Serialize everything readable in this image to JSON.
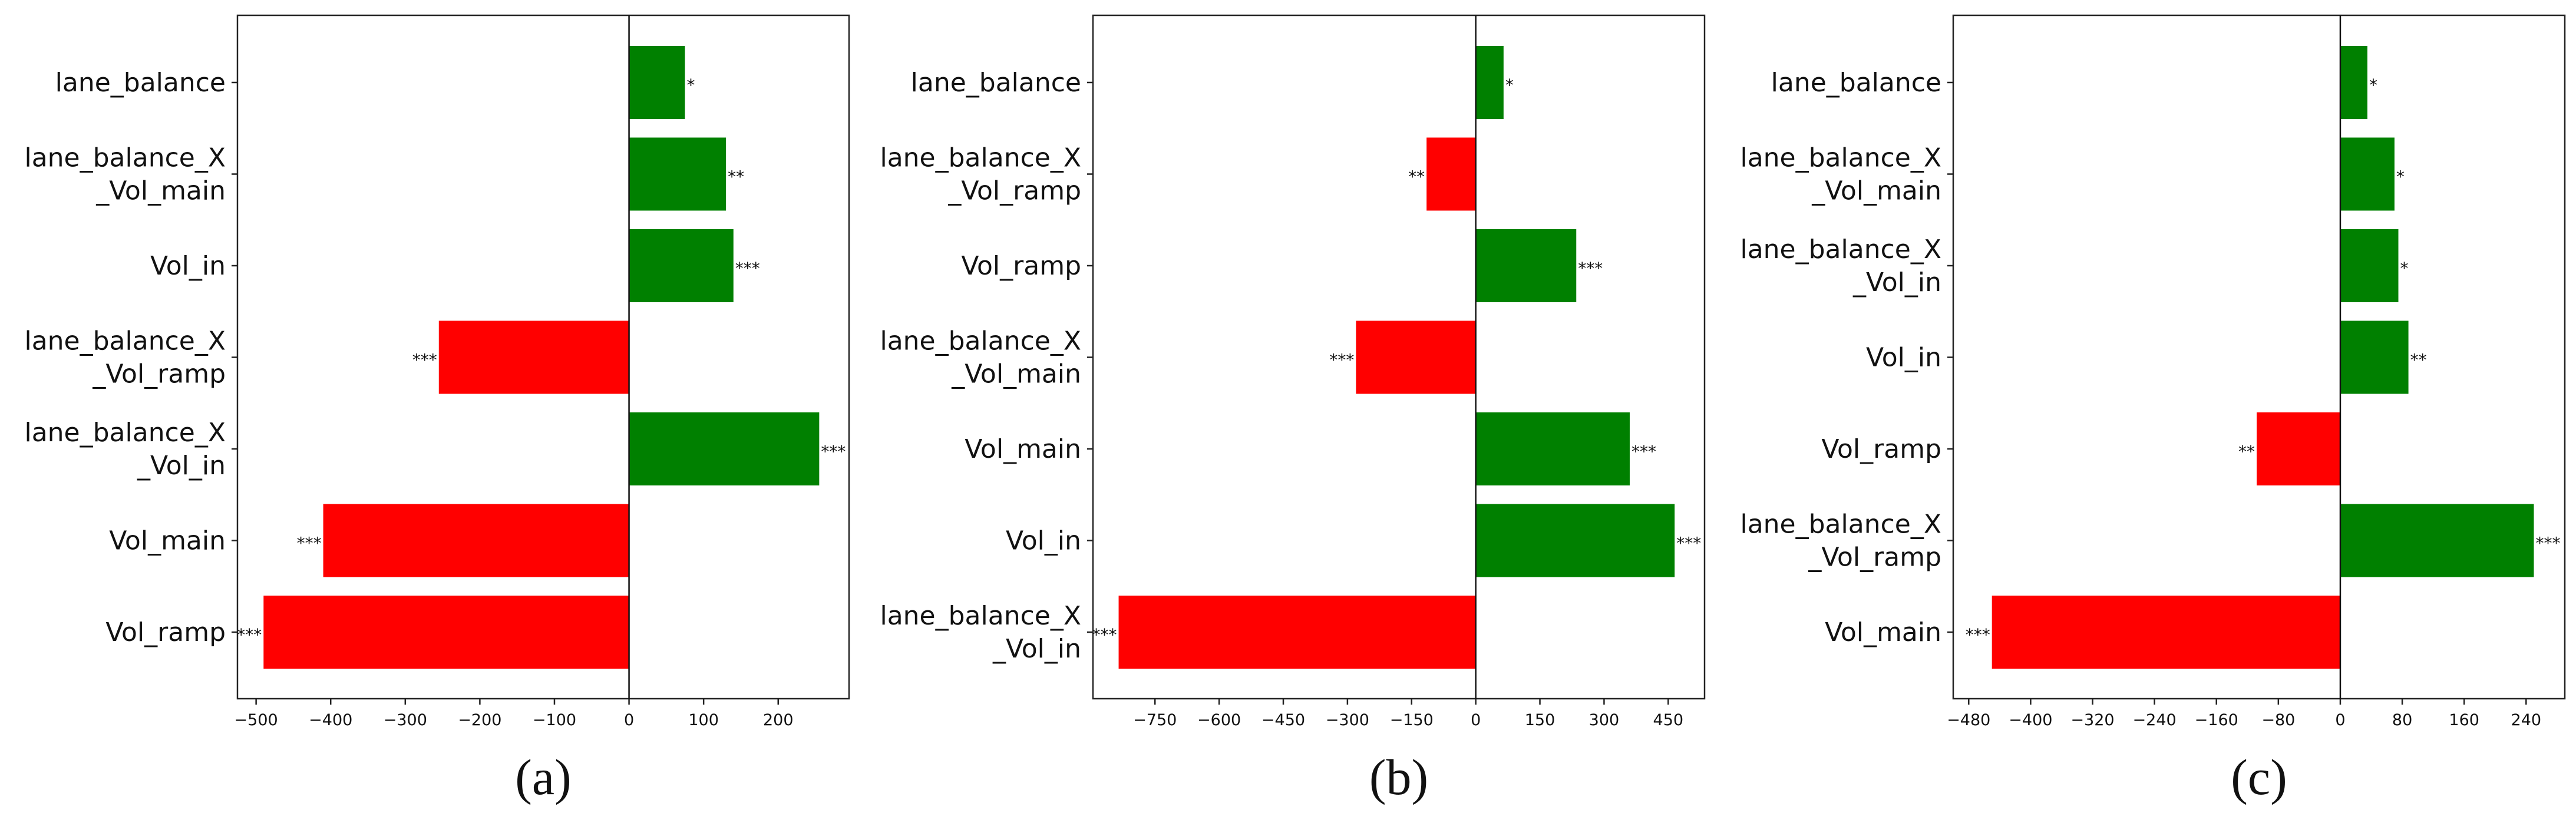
{
  "colors": {
    "positive": "#008000",
    "negative": "#ff0000"
  },
  "chart_data": [
    {
      "type": "bar",
      "orientation": "horizontal",
      "panel_label": "(a)",
      "categories": [
        [
          "lane_balance"
        ],
        [
          "lane_balance_X",
          "_Vol_main"
        ],
        [
          "Vol_in"
        ],
        [
          "lane_balance_X",
          "_Vol_ramp"
        ],
        [
          "lane_balance_X",
          "_Vol_in"
        ],
        [
          "Vol_main"
        ],
        [
          "Vol_ramp"
        ]
      ],
      "values": [
        75,
        130,
        140,
        -255,
        255,
        -410,
        -490
      ],
      "significance": [
        "*",
        "**",
        "***",
        "***",
        "***",
        "***",
        "***"
      ],
      "xlim": [
        -525,
        295
      ],
      "xticks": [
        -500,
        -400,
        -300,
        -200,
        -100,
        0,
        100,
        200
      ],
      "xtick_labels": [
        "−500",
        "−400",
        "−300",
        "−200",
        "−100",
        "0",
        "100",
        "200"
      ]
    },
    {
      "type": "bar",
      "orientation": "horizontal",
      "panel_label": "(b)",
      "categories": [
        [
          "lane_balance"
        ],
        [
          "lane_balance_X",
          "_Vol_ramp"
        ],
        [
          "Vol_ramp"
        ],
        [
          "lane_balance_X",
          "_Vol_main"
        ],
        [
          "Vol_main"
        ],
        [
          "Vol_in"
        ],
        [
          "lane_balance_X",
          "_Vol_in"
        ]
      ],
      "values": [
        65,
        -115,
        235,
        -280,
        360,
        465,
        -835
      ],
      "significance": [
        "*",
        "**",
        "***",
        "***",
        "***",
        "***",
        "***"
      ],
      "xlim": [
        -895,
        535
      ],
      "xticks": [
        -750,
        -600,
        -450,
        -300,
        -150,
        0,
        150,
        300,
        450
      ],
      "xtick_labels": [
        "−750",
        "−600",
        "−450",
        "−300",
        "−150",
        "0",
        "150",
        "300",
        "450"
      ]
    },
    {
      "type": "bar",
      "orientation": "horizontal",
      "panel_label": "(c)",
      "categories": [
        [
          "lane_balance"
        ],
        [
          "lane_balance_X",
          "_Vol_main"
        ],
        [
          "lane_balance_X",
          "_Vol_in"
        ],
        [
          "Vol_in"
        ],
        [
          "Vol_ramp"
        ],
        [
          "lane_balance_X",
          "_Vol_ramp"
        ],
        [
          "Vol_main"
        ]
      ],
      "values": [
        35,
        70,
        75,
        88,
        -108,
        250,
        -450
      ],
      "significance": [
        "*",
        "*",
        "*",
        "**",
        "**",
        "***",
        "***"
      ],
      "xlim": [
        -500,
        290
      ],
      "xticks": [
        -480,
        -400,
        -320,
        -240,
        -160,
        -80,
        0,
        80,
        160,
        240
      ],
      "xtick_labels": [
        "−480",
        "−400",
        "−320",
        "−240",
        "−160",
        "−80",
        "0",
        "80",
        "160",
        "240"
      ]
    }
  ]
}
